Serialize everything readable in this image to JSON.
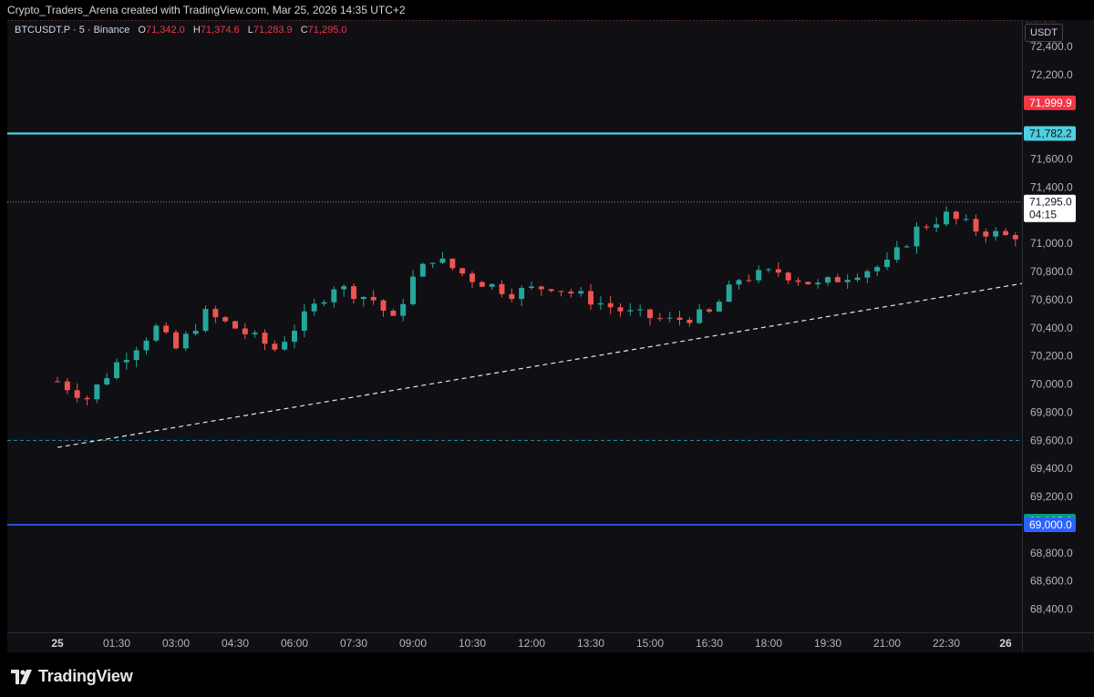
{
  "header": {
    "title": "Crypto_Traders_Arena created with TradingView.com, Mar 25, 2026 14:35 UTC+2"
  },
  "legend": {
    "symbol": "BTCUSDT.P · 5 · Binance",
    "open_label": "O",
    "open": "71,342.0",
    "high_label": "H",
    "high": "71,374.6",
    "low_label": "L",
    "low": "71,283.9",
    "close_label": "C",
    "close": "71,295.0"
  },
  "price_scale": {
    "currency": "USDT",
    "ticks": [
      "72,400.0",
      "72,200.0",
      "71,800.0",
      "71,600.0",
      "71,400.0",
      "71,000.0",
      "70,800.0",
      "70,600.0",
      "70,400.0",
      "70,200.0",
      "70,000.0",
      "69,800.0",
      "69,600.0",
      "69,400.0",
      "69,200.0",
      "68,800.0",
      "68,600.0",
      "68,400.0"
    ],
    "tag_stop": "71,999.9",
    "tag_level": "71,782.2",
    "tag_last": "71,295.0",
    "tag_countdown": "04:15",
    "tag_target": "69,025.6",
    "tag_support": "69,000.0",
    "top_faded": "72,672.0"
  },
  "time_scale": {
    "ticks": [
      "25",
      "01:30",
      "03:00",
      "04:30",
      "06:00",
      "07:30",
      "09:00",
      "10:30",
      "12:00",
      "13:30",
      "15:00",
      "16:30",
      "18:00",
      "19:30",
      "21:00",
      "22:30",
      "26"
    ]
  },
  "brand": {
    "name": "TradingView"
  },
  "colors": {
    "up": "#26a69a",
    "down": "#ef5350",
    "background": "#0f0f14",
    "level": "#4dd0e1",
    "support": "#2962ff",
    "stop_tag": "#f23645",
    "target_tag": "#089981"
  },
  "chart_data": {
    "type": "candlestick",
    "symbol": "BTCUSDT.P",
    "interval": "5",
    "ylim": [
      68300,
      72550
    ],
    "last_price": 71295.0,
    "horizontal_levels": [
      {
        "price": 71782.2,
        "style": "solid"
      },
      {
        "price": 69600.0,
        "style": "dashed"
      },
      {
        "price": 69000.0,
        "style": "solid"
      }
    ],
    "trendline": {
      "from": [
        "00:00",
        69550
      ],
      "to": [
        "22:00",
        72700
      ],
      "style": "dashed"
    },
    "short_position": {
      "start": "13:35",
      "end": "17:10",
      "entry": 71782.2,
      "stop": 71999.9,
      "target": 69025.6
    },
    "price_path": [
      [
        "00:00",
        70020
      ],
      [
        "00:15",
        69900
      ],
      [
        "00:30",
        70150
      ],
      [
        "00:50",
        70400
      ],
      [
        "01:00",
        70250
      ],
      [
        "01:15",
        70500
      ],
      [
        "01:30",
        70400
      ],
      [
        "01:50",
        70250
      ],
      [
        "02:10",
        70550
      ],
      [
        "02:20",
        70700
      ],
      [
        "02:40",
        70600
      ],
      [
        "02:50",
        70450
      ],
      [
        "03:00",
        70750
      ],
      [
        "03:10",
        70900
      ],
      [
        "03:30",
        70750
      ],
      [
        "03:50",
        70650
      ],
      [
        "04:10",
        70700
      ],
      [
        "04:30",
        70600
      ],
      [
        "04:50",
        70500
      ],
      [
        "05:10",
        70450
      ],
      [
        "05:30",
        70500
      ],
      [
        "05:45",
        70750
      ],
      [
        "06:05",
        70800
      ],
      [
        "06:25",
        70700
      ],
      [
        "06:45",
        70800
      ],
      [
        "07:00",
        70850
      ],
      [
        "07:15",
        71100
      ],
      [
        "07:30",
        71200
      ],
      [
        "07:45",
        71100
      ],
      [
        "08:00",
        71050
      ],
      [
        "08:20",
        71100
      ],
      [
        "08:45",
        71100
      ],
      [
        "09:00",
        71150
      ],
      [
        "09:20",
        71050
      ],
      [
        "09:40",
        71000
      ],
      [
        "10:00",
        70950
      ],
      [
        "10:20",
        70800
      ],
      [
        "10:35",
        71050
      ],
      [
        "10:50",
        71300
      ],
      [
        "11:05",
        71450
      ],
      [
        "11:30",
        71300
      ],
      [
        "11:50",
        71200
      ],
      [
        "12:10",
        71150
      ],
      [
        "12:30",
        71300
      ],
      [
        "12:45",
        71400
      ],
      [
        "13:00",
        71350
      ],
      [
        "13:15",
        71550
      ],
      [
        "13:30",
        71650
      ],
      [
        "13:35",
        71900
      ],
      [
        "13:50",
        71550
      ],
      [
        "14:00",
        71700
      ],
      [
        "14:10",
        71500
      ],
      [
        "14:20",
        71150
      ],
      [
        "14:30",
        71280
      ],
      [
        "14:35",
        71295
      ]
    ]
  }
}
